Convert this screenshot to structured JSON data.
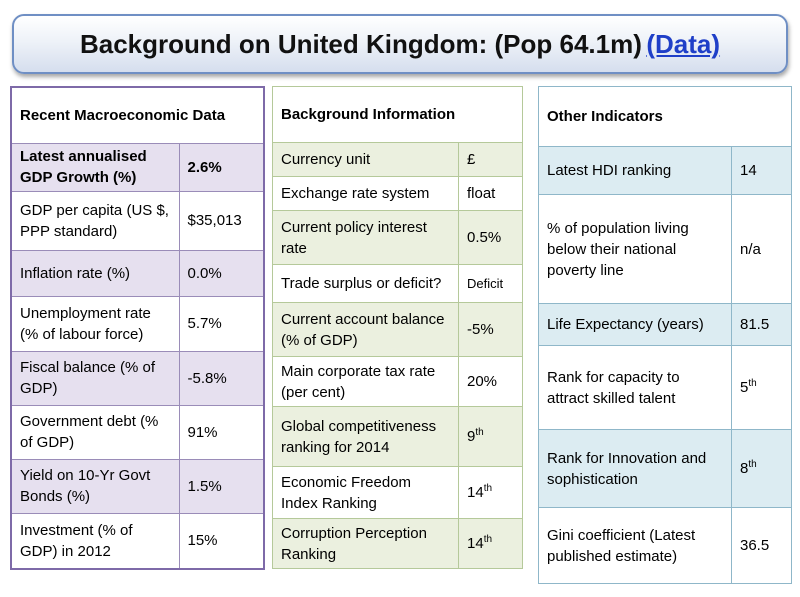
{
  "title": {
    "text": "Background on United Kingdom: (Pop 64.1m)",
    "link": "(Data)"
  },
  "macro": {
    "heading": "Recent Macroeconomic Data",
    "rows": [
      {
        "label": "Latest annualised GDP Growth (%)",
        "value": "2.6%"
      },
      {
        "label": "GDP per capita (US $, PPP standard)",
        "value": "$35,013"
      },
      {
        "label": "Inflation rate (%)",
        "value": "0.0%"
      },
      {
        "label": "Unemployment rate (% of labour force)",
        "value": "5.7%"
      },
      {
        "label": "Fiscal balance (% of GDP)",
        "value": "-5.8%"
      },
      {
        "label": "Government debt (% of GDP)",
        "value": "91%"
      },
      {
        "label": "Yield on 10-Yr Govt Bonds (%)",
        "value": "1.5%"
      },
      {
        "label": "Investment (% of GDP) in 2012",
        "value": "15%"
      }
    ]
  },
  "background": {
    "heading": "Background Information",
    "rows": [
      {
        "label": "Currency unit",
        "value": "£"
      },
      {
        "label": "Exchange rate system",
        "value": "float"
      },
      {
        "label": "Current policy interest rate",
        "value": "0.5%"
      },
      {
        "label": "Trade surplus or deficit?",
        "value": "Deficit"
      },
      {
        "label": "Current account balance (% of GDP)",
        "value": "-5%"
      },
      {
        "label": "Main corporate tax rate (per cent)",
        "value": "20%"
      },
      {
        "label": "Global competitiveness ranking for 2014",
        "value": "9",
        "sup": "th"
      },
      {
        "label": "Economic Freedom Index Ranking",
        "value": "14",
        "sup": "th"
      },
      {
        "label": "Corruption Perception Ranking",
        "value": "14",
        "sup": "th"
      }
    ]
  },
  "other": {
    "heading": "Other Indicators",
    "rows": [
      {
        "label": "Latest HDI ranking",
        "value": "14"
      },
      {
        "label": "% of population living below their national poverty line",
        "value": "n/a"
      },
      {
        "label": "Life Expectancy (years)",
        "value": "81.5"
      },
      {
        "label": "Rank for capacity to attract skilled talent",
        "value": "5",
        "sup": "th"
      },
      {
        "label": "Rank for Innovation and sophistication",
        "value": "8",
        "sup": "th"
      },
      {
        "label": "Gini coefficient (Latest published estimate)",
        "value": "36.5"
      }
    ]
  }
}
